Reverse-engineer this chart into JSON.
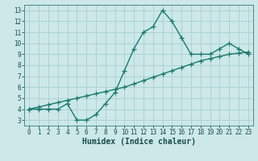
{
  "x": [
    0,
    1,
    2,
    3,
    4,
    5,
    6,
    7,
    8,
    9,
    10,
    11,
    12,
    13,
    14,
    15,
    16,
    17,
    18,
    19,
    20,
    21,
    22,
    23
  ],
  "y_curve": [
    4.0,
    4.0,
    4.0,
    4.0,
    4.5,
    3.0,
    3.0,
    3.5,
    4.5,
    5.5,
    7.5,
    9.5,
    11.0,
    11.5,
    13.0,
    12.0,
    10.5,
    9.0,
    9.0,
    9.0,
    9.5,
    10.0,
    9.5,
    9.0
  ],
  "y_linear": [
    4.0,
    4.2,
    4.4,
    4.6,
    4.8,
    5.0,
    5.2,
    5.4,
    5.6,
    5.8,
    6.0,
    6.3,
    6.6,
    6.9,
    7.2,
    7.5,
    7.8,
    8.1,
    8.4,
    8.6,
    8.8,
    9.0,
    9.1,
    9.2
  ],
  "line_color": "#1a7a6e",
  "bg_color": "#cce8e8",
  "grid_color": "#aacece",
  "xlabel": "Humidex (Indice chaleur)",
  "ylim": [
    2.5,
    13.5
  ],
  "xlim": [
    -0.5,
    23.5
  ],
  "yticks": [
    3,
    4,
    5,
    6,
    7,
    8,
    9,
    10,
    11,
    12,
    13
  ],
  "xticks": [
    0,
    1,
    2,
    3,
    4,
    5,
    6,
    7,
    8,
    9,
    10,
    11,
    12,
    13,
    14,
    15,
    16,
    17,
    18,
    19,
    20,
    21,
    22,
    23
  ],
  "xtick_labels": [
    "0",
    "1",
    "2",
    "3",
    "4",
    "5",
    "6",
    "7",
    "8",
    "9",
    "10",
    "11",
    "12",
    "13",
    "14",
    "15",
    "16",
    "17",
    "18",
    "19",
    "20",
    "21",
    "22",
    "23"
  ],
  "marker": "+",
  "markersize": 4,
  "linewidth": 1.0,
  "font_family": "monospace",
  "xlabel_fontsize": 7,
  "tick_fontsize": 5.5
}
